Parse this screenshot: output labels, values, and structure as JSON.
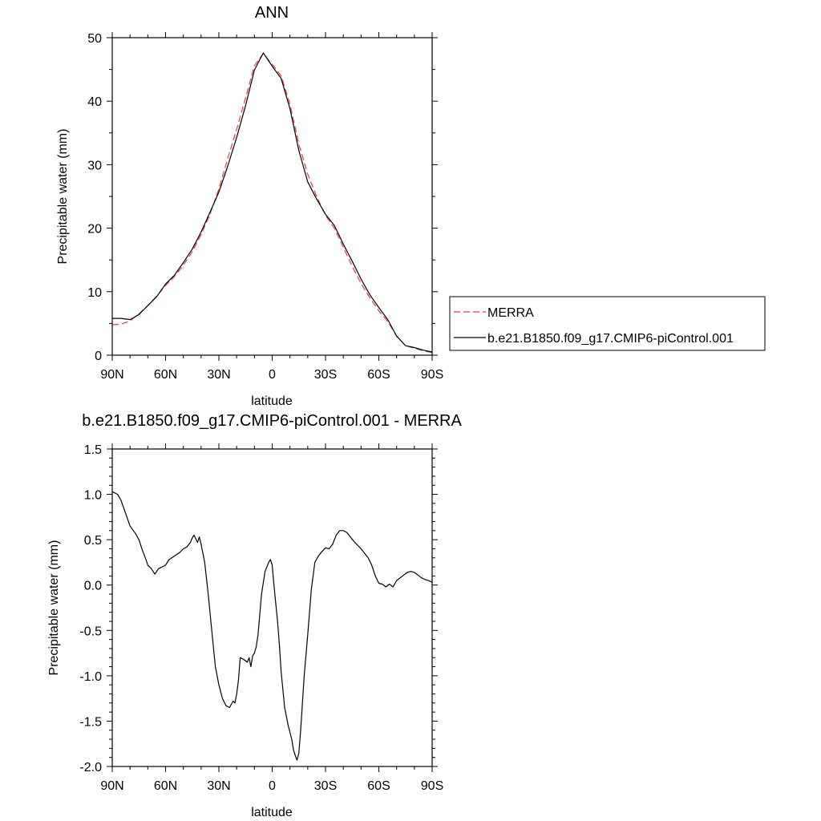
{
  "chart_data": [
    {
      "type": "line",
      "title": "ANN",
      "xlabel": "latitude",
      "ylabel": "Precipitable water (mm)",
      "xlim": [
        90,
        -90
      ],
      "ylim": [
        0,
        50
      ],
      "xticks": [
        90,
        60,
        30,
        0,
        -30,
        -60,
        -90
      ],
      "xtick_labels": [
        "90N",
        "60N",
        "30N",
        "0",
        "30S",
        "60S",
        "90S"
      ],
      "yticks": [
        0,
        10,
        20,
        30,
        40,
        50
      ],
      "ytick_labels": [
        "0",
        "10",
        "20",
        "30",
        "40",
        "50"
      ],
      "grid": false,
      "legend_position": "outside-right",
      "series": [
        {
          "name": "MERRA",
          "color": "#ff3333",
          "dash": "dashed",
          "x": [
            90,
            85,
            80,
            75,
            70,
            65,
            60,
            55,
            50,
            45,
            40,
            35,
            30,
            25,
            20,
            15,
            10,
            5,
            0,
            -5,
            -10,
            -15,
            -20,
            -25,
            -30,
            -35,
            -40,
            -45,
            -50,
            -55,
            -60,
            -65,
            -70,
            -75,
            -80,
            -85,
            -90
          ],
          "y": [
            4.8,
            4.9,
            5.4,
            6.5,
            7.8,
            9.3,
            11.0,
            12.4,
            14.2,
            16.3,
            19.0,
            22.2,
            26.2,
            31.0,
            35.6,
            40.5,
            45.6,
            47.5,
            45.8,
            44.0,
            39.5,
            33.2,
            28.5,
            25.0,
            22.0,
            20.0,
            17.0,
            14.0,
            11.3,
            9.0,
            7.0,
            5.3,
            3.0,
            1.5,
            1.1,
            0.7,
            0.4
          ]
        },
        {
          "name": "b.e21.B1850.f09_g17.CMIP6-piControl.001",
          "color": "#000000",
          "dash": "solid",
          "x": [
            90,
            85,
            80,
            75,
            70,
            65,
            60,
            55,
            50,
            45,
            40,
            35,
            30,
            25,
            20,
            15,
            10,
            5,
            0,
            -5,
            -10,
            -15,
            -20,
            -25,
            -30,
            -35,
            -40,
            -45,
            -50,
            -55,
            -60,
            -65,
            -70,
            -75,
            -80,
            -85,
            -90
          ],
          "y": [
            5.8,
            5.8,
            5.6,
            6.4,
            7.8,
            9.2,
            11.2,
            12.6,
            14.6,
            16.7,
            19.4,
            22.5,
            25.7,
            29.8,
            34.3,
            39.3,
            44.9,
            47.6,
            45.5,
            43.6,
            38.8,
            32.2,
            27.3,
            24.6,
            22.2,
            20.4,
            17.5,
            14.8,
            12.0,
            9.5,
            7.5,
            5.6,
            3.0,
            1.5,
            1.2,
            0.8,
            0.5
          ]
        }
      ]
    },
    {
      "type": "line",
      "title": "b.e21.B1850.f09_g17.CMIP6-piControl.001 - MERRA",
      "xlabel": "latitude",
      "ylabel": "Precipitable water (mm)",
      "xlim": [
        90,
        -90
      ],
      "ylim": [
        -2.0,
        1.5
      ],
      "xticks": [
        90,
        60,
        30,
        0,
        -30,
        -60,
        -90
      ],
      "xtick_labels": [
        "90N",
        "60N",
        "30N",
        "0",
        "30S",
        "60S",
        "90S"
      ],
      "yticks": [
        1.5,
        1.0,
        0.5,
        0.0,
        -0.5,
        -1.0,
        -1.5,
        -2.0
      ],
      "ytick_labels": [
        "1.5",
        "1.0",
        "0.5",
        "0.0",
        "-0.5",
        "-1.0",
        "-1.5",
        "-2.0"
      ],
      "grid": false,
      "series": [
        {
          "color": "#000000",
          "dash": "solid",
          "x": [
            90,
            87,
            85,
            83,
            80,
            77,
            75,
            73,
            71,
            70,
            68,
            66,
            64,
            62,
            60,
            58,
            55,
            52,
            50,
            48,
            46,
            45,
            44,
            42,
            41,
            40,
            38,
            36,
            34,
            32,
            30,
            28,
            26,
            24,
            22,
            21,
            20,
            19,
            18,
            16,
            14,
            13,
            12,
            11,
            10,
            9,
            8,
            6,
            4,
            2,
            1,
            0,
            -1,
            -2,
            -3,
            -4,
            -5,
            -7,
            -9,
            -11,
            -12,
            -13,
            -14,
            -15,
            -16,
            -17,
            -18,
            -20,
            -22,
            -24,
            -26,
            -28,
            -30,
            -32,
            -34,
            -36,
            -38,
            -40,
            -42,
            -44,
            -46,
            -48,
            -50,
            -52,
            -54,
            -56,
            -58,
            -60,
            -62,
            -64,
            -66,
            -68,
            -70,
            -72,
            -74,
            -76,
            -78,
            -80,
            -82,
            -84,
            -86,
            -88,
            -90
          ],
          "y": [
            1.03,
            1.0,
            0.93,
            0.82,
            0.65,
            0.57,
            0.5,
            0.38,
            0.28,
            0.22,
            0.18,
            0.12,
            0.18,
            0.2,
            0.22,
            0.28,
            0.32,
            0.36,
            0.4,
            0.42,
            0.47,
            0.52,
            0.55,
            0.47,
            0.53,
            0.45,
            0.25,
            -0.1,
            -0.5,
            -0.9,
            -1.1,
            -1.25,
            -1.33,
            -1.35,
            -1.28,
            -1.3,
            -1.2,
            -1.05,
            -0.8,
            -0.82,
            -0.85,
            -0.8,
            -0.9,
            -0.78,
            -0.75,
            -0.68,
            -0.55,
            -0.1,
            0.15,
            0.25,
            0.28,
            0.22,
            0.0,
            -0.2,
            -0.4,
            -0.65,
            -0.95,
            -1.35,
            -1.55,
            -1.7,
            -1.82,
            -1.88,
            -1.93,
            -1.85,
            -1.6,
            -1.3,
            -1.0,
            -0.55,
            -0.05,
            0.25,
            0.32,
            0.37,
            0.41,
            0.4,
            0.45,
            0.55,
            0.6,
            0.6,
            0.58,
            0.53,
            0.48,
            0.44,
            0.4,
            0.35,
            0.3,
            0.22,
            0.1,
            0.02,
            0.01,
            -0.02,
            0.01,
            -0.02,
            0.05,
            0.08,
            0.11,
            0.14,
            0.15,
            0.14,
            0.11,
            0.08,
            0.06,
            0.05,
            0.03
          ]
        }
      ]
    }
  ]
}
